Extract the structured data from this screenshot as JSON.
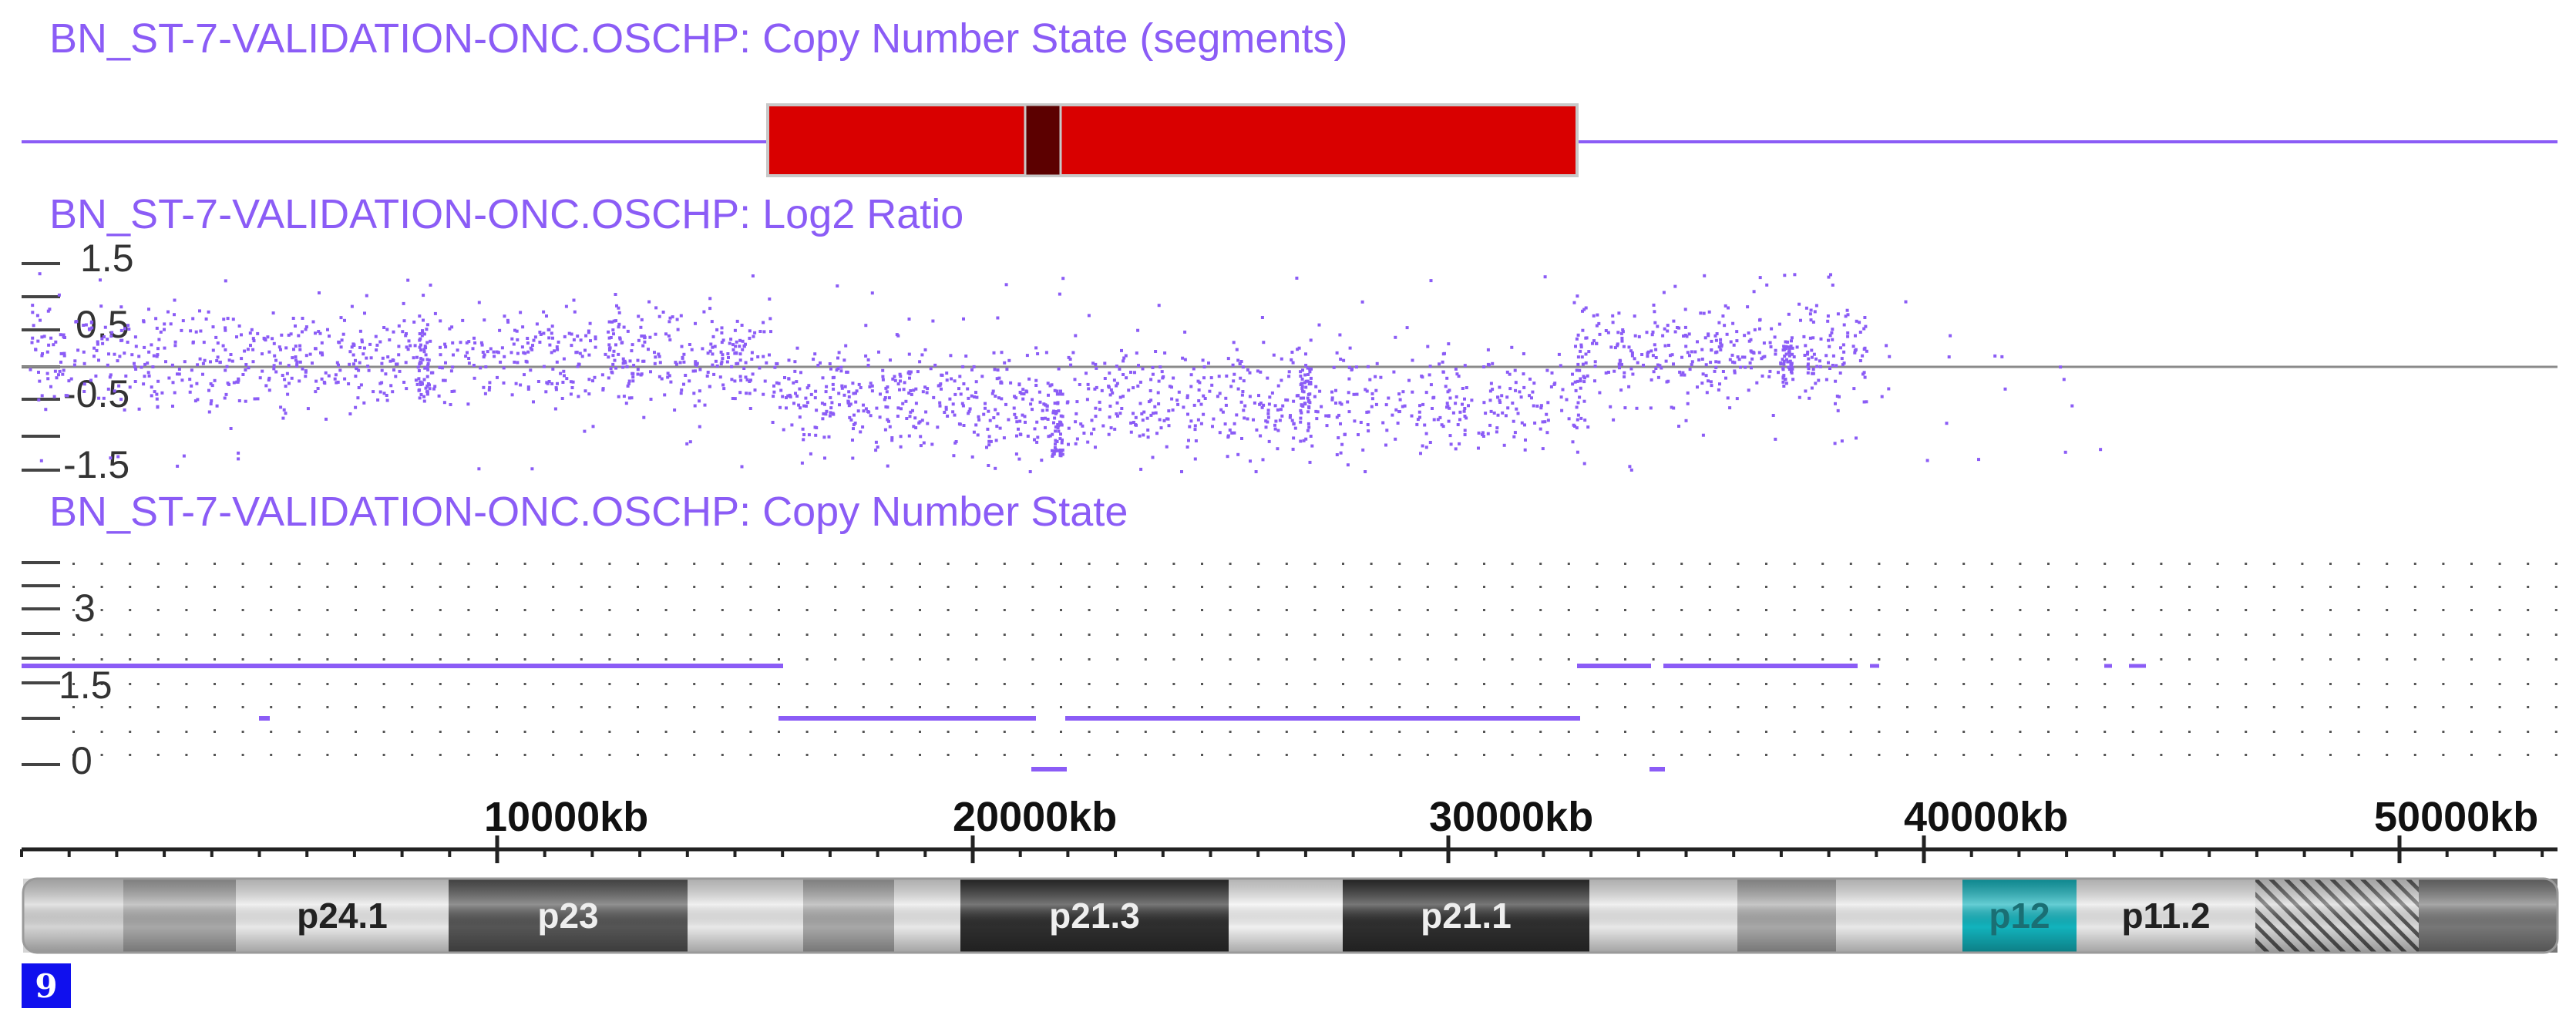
{
  "theme": {
    "track_color": "#8b5cf6",
    "segment_color": "#d90000",
    "segment_dark": "#5c0000",
    "baseline_color": "#8a8a8a",
    "ideogram_highlight": "#12b3bd"
  },
  "tracks": {
    "segments": {
      "title": "BN_ST-7-VALIDATION-ONC.OSCHP: Copy Number State (segments)"
    },
    "log2": {
      "title": "BN_ST-7-VALIDATION-ONC.OSCHP: Log2 Ratio",
      "tick_labels": [
        "1.5",
        "0.5",
        "-0.5",
        "-1.5"
      ]
    },
    "cn_state": {
      "title": "BN_ST-7-VALIDATION-ONC.OSCHP: Copy Number State",
      "tick_labels": [
        "3",
        "1.5",
        "0"
      ]
    }
  },
  "ruler": {
    "labels": [
      "10000kb",
      "20000kb",
      "30000kb",
      "40000kb",
      "50000kb"
    ]
  },
  "ideogram": {
    "band_labels": [
      "p24.1",
      "p23",
      "p21.3",
      "p21.1",
      "p12",
      "p11.2"
    ]
  },
  "chromosome": {
    "label": "9"
  }
}
